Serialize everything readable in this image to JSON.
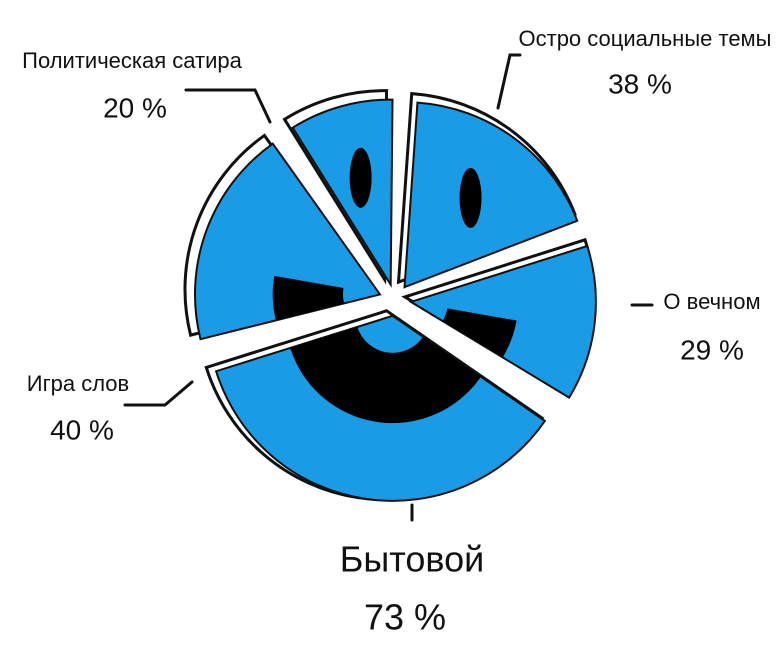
{
  "chart_data": {
    "type": "pie",
    "categories": [
      "Остро социальные темы",
      "О вечном",
      "Бытовой",
      "Игра слов",
      "Политическая сатира"
    ],
    "values": [
      38,
      29,
      73,
      40,
      20
    ],
    "value_labels": [
      "38 %",
      "29 %",
      "73 %",
      "40 %",
      "20 %"
    ],
    "color": "#1a9be6"
  }
}
